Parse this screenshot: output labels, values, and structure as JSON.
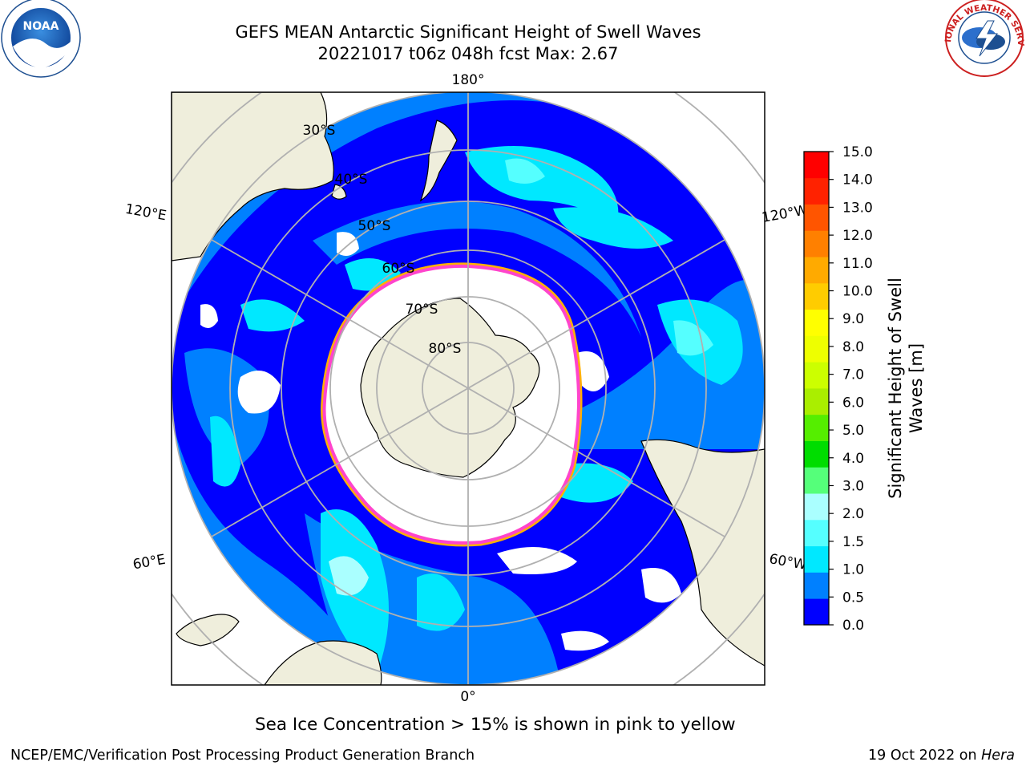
{
  "header": {
    "title_line1": "GEFS MEAN Antarctic Significant Height of Swell Waves",
    "title_line2": "20221017 t06z 048h fcst   Max: 2.67"
  },
  "logos": {
    "left": {
      "name": "noaa-logo",
      "text": "NOAA",
      "ring_text": "NATIONAL OCEANIC AND ATMOSPHERIC ADMINISTRATION · U.S. DEPARTMENT OF COMMERCE"
    },
    "right": {
      "name": "nws-logo",
      "ring_text": "NATIONAL WEATHER SERVICE"
    }
  },
  "map": {
    "projection": "south-polar-stereographic",
    "center": "South Pole",
    "lon_labels": [
      "180°",
      "120°E",
      "120°W",
      "60°E",
      "60°W",
      "0°"
    ],
    "lat_labels": [
      "30°S",
      "40°S",
      "50°S",
      "60°S",
      "70°S",
      "80°S"
    ],
    "colors": {
      "land": "#efeedc",
      "ice_free_ocean": "#ffffff",
      "ice_edge_inner": "#ff44cc",
      "ice_edge_outer": "#ffb000",
      "grid": "#b0b0b0"
    }
  },
  "colorbar": {
    "title": "Significant Height of Swell Waves [m]",
    "ticks": [
      "15.0",
      "14.0",
      "13.0",
      "12.0",
      "11.0",
      "10.0",
      "9.0",
      "8.0",
      "7.0",
      "6.0",
      "5.0",
      "4.0",
      "3.0",
      "2.0",
      "1.5",
      "1.0",
      "0.5",
      "0.0"
    ],
    "colors_bottom_to_top": [
      "#0000ff",
      "#0080ff",
      "#00e8ff",
      "#55ffff",
      "#aaffff",
      "#55ff7a",
      "#00dd00",
      "#55ee00",
      "#aaee00",
      "#ccff00",
      "#eeff00",
      "#ffff00",
      "#ffcc00",
      "#ffaa00",
      "#ff8000",
      "#ff5500",
      "#ff2200",
      "#ff0000"
    ]
  },
  "note": "Sea Ice Concentration > 15% is shown in pink to yellow",
  "footer": {
    "left": "NCEP/EMC/Verification Post Processing Product Generation Branch",
    "right_prefix": "19 Oct 2022 on ",
    "right_host": "Hera"
  }
}
